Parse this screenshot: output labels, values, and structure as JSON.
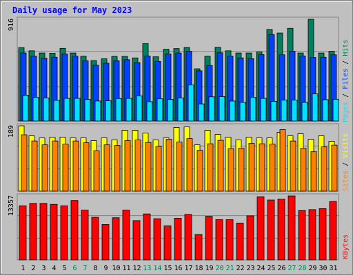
{
  "chart_data": [
    {
      "type": "bar",
      "title": "Daily usage for May 2023",
      "categories": [
        "1",
        "2",
        "3",
        "4",
        "5",
        "6",
        "7",
        "8",
        "9",
        "10",
        "11",
        "12",
        "13",
        "14",
        "15",
        "16",
        "17",
        "18",
        "19",
        "20",
        "21",
        "22",
        "23",
        "24",
        "25",
        "26",
        "27",
        "28",
        "29",
        "30",
        "31"
      ],
      "weekend_days": [
        "6",
        "7",
        "13",
        "14",
        "20",
        "21",
        "27",
        "28"
      ],
      "ymax_label": "916",
      "ylim": [
        0,
        916
      ],
      "legend": [
        "Pages",
        "Files",
        "Hits"
      ],
      "series": [
        {
          "name": "Hits",
          "color": "#00805c",
          "values": [
            660,
            632,
            612,
            610,
            654,
            612,
            584,
            544,
            560,
            582,
            582,
            568,
            696,
            578,
            646,
            652,
            662,
            470,
            584,
            664,
            632,
            612,
            612,
            622,
            824,
            792,
            834,
            612,
            916,
            612,
            628
          ]
        },
        {
          "name": "Files",
          "color": "#0040ff",
          "values": [
            612,
            584,
            566,
            574,
            604,
            584,
            542,
            502,
            520,
            542,
            552,
            526,
            586,
            536,
            604,
            612,
            628,
            452,
            500,
            614,
            584,
            568,
            562,
            598,
            778,
            596,
            628,
            586,
            572,
            574,
            596
          ]
        },
        {
          "name": "Pages",
          "color": "#00e0ff",
          "values": [
            232,
            212,
            208,
            186,
            204,
            204,
            194,
            180,
            182,
            202,
            204,
            226,
            174,
            200,
            194,
            208,
            324,
            154,
            218,
            220,
            180,
            168,
            212,
            204,
            176,
            188,
            188,
            168,
            244,
            192,
            196
          ]
        }
      ]
    },
    {
      "type": "bar",
      "categories": [
        "1",
        "2",
        "3",
        "4",
        "5",
        "6",
        "7",
        "8",
        "9",
        "10",
        "11",
        "12",
        "13",
        "14",
        "15",
        "16",
        "17",
        "18",
        "19",
        "20",
        "21",
        "22",
        "23",
        "24",
        "25",
        "26",
        "27",
        "28",
        "29",
        "30",
        "31"
      ],
      "ymax_label": "189",
      "ylim": [
        0,
        189
      ],
      "legend": [
        "Sites",
        "Visits"
      ],
      "series": [
        {
          "name": "Visits",
          "color": "#ffff00",
          "values": [
            189,
            160,
            154,
            156,
            156,
            154,
            154,
            146,
            154,
            148,
            176,
            176,
            168,
            148,
            154,
            184,
            186,
            134,
            176,
            164,
            156,
            148,
            156,
            154,
            154,
            170,
            160,
            166,
            150,
            160,
            144
          ]
        },
        {
          "name": "Sites",
          "color": "#ff8000",
          "values": [
            163,
            145,
            134,
            145,
            136,
            145,
            140,
            117,
            134,
            132,
            146,
            148,
            141,
            129,
            150,
            142,
            152,
            118,
            137,
            147,
            123,
            124,
            138,
            137,
            136,
            178,
            145,
            124,
            114,
            128,
            133
          ]
        }
      ]
    },
    {
      "type": "bar",
      "categories": [
        "1",
        "2",
        "3",
        "4",
        "5",
        "6",
        "7",
        "8",
        "9",
        "10",
        "11",
        "12",
        "13",
        "14",
        "15",
        "16",
        "17",
        "18",
        "19",
        "20",
        "21",
        "22",
        "23",
        "24",
        "25",
        "26",
        "27",
        "28",
        "29",
        "30",
        "31"
      ],
      "ymax_label": "13357",
      "ylim": [
        0,
        13357
      ],
      "legend": [
        "KBytes"
      ],
      "series": [
        {
          "name": "KBytes",
          "color": "#ff0000",
          "values": [
            11300,
            11800,
            11800,
            11600,
            11300,
            12400,
            10400,
            8900,
            7400,
            8800,
            10400,
            8200,
            9600,
            8600,
            7100,
            8700,
            9500,
            5300,
            9100,
            8400,
            8400,
            7700,
            9200,
            13200,
            12500,
            12700,
            13357,
            10300,
            10500,
            10700,
            12200
          ]
        }
      ]
    }
  ]
}
